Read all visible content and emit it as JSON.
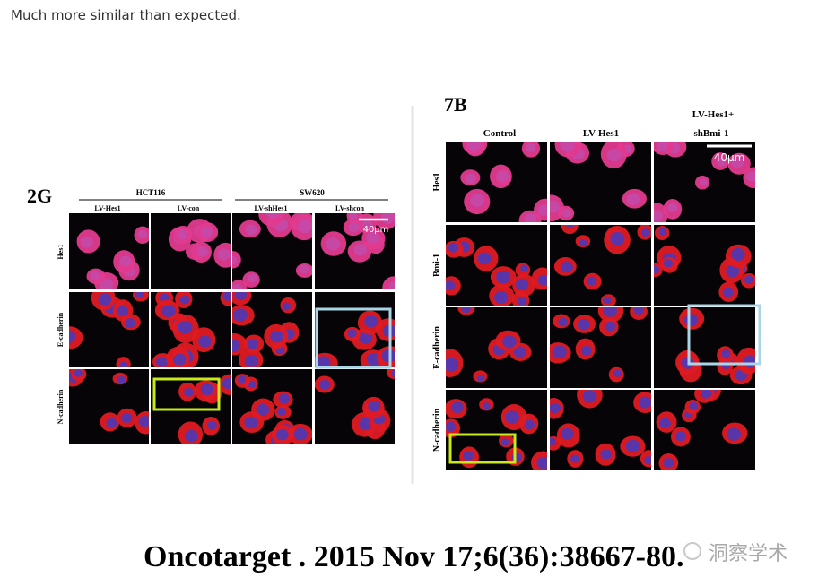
{
  "header": {
    "text": "Much more similar than expected."
  },
  "figure_2g": {
    "label": "2G",
    "groups": [
      "HCT116",
      "SW620"
    ],
    "columns": [
      "LV-Hes1",
      "LV-con",
      "LV-shHes1",
      "LV-shcon"
    ],
    "rows": [
      "Hes1",
      "E-cadherin",
      "N-cadherin"
    ],
    "scale_bar": "40μm"
  },
  "figure_7b": {
    "label": "7B",
    "columns": [
      "Control",
      "LV-Hes1",
      [
        "LV-Hes1+",
        "shBmi-1"
      ]
    ],
    "rows": [
      "Hes1",
      "Bmi-1",
      "E-cadherin",
      "N-cadherin"
    ],
    "scale_bar": "40μm"
  },
  "citation": "Oncotarget . 2015 Nov 17;6(36):38667-80.",
  "watermark": "洞察学术"
}
